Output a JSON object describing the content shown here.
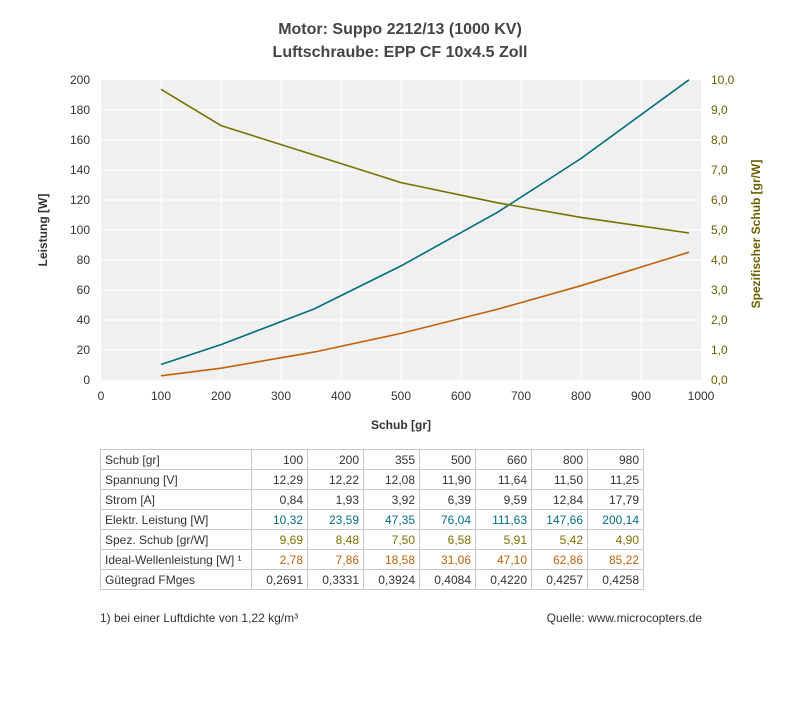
{
  "title": {
    "line1": "Motor: Suppo 2212/13 (1000 KV)",
    "line2": "Luftschraube: EPP CF 10x4.5 Zoll"
  },
  "chart_data": {
    "type": "line",
    "xlabel": "Schub [gr]",
    "ylabel": "Leistung [W]",
    "y2label": "Spezifischer Schub [gr/W]",
    "xlim": [
      0,
      1000
    ],
    "ylim": [
      0,
      200
    ],
    "y2lim": [
      0,
      10
    ],
    "grid": true,
    "x_ticks": [
      "0",
      "100",
      "200",
      "300",
      "400",
      "500",
      "600",
      "700",
      "800",
      "900",
      "1000"
    ],
    "y_ticks": [
      "0",
      "20",
      "40",
      "60",
      "80",
      "100",
      "120",
      "140",
      "160",
      "180",
      "200"
    ],
    "y2_ticks": [
      "0,0",
      "1,0",
      "2,0",
      "3,0",
      "4,0",
      "5,0",
      "6,0",
      "7,0",
      "8,0",
      "9,0",
      "10,0"
    ],
    "x": [
      100,
      200,
      355,
      500,
      660,
      800,
      980
    ],
    "series": [
      {
        "axis": "left",
        "color": "#006e7f",
        "values": [
          10.32,
          23.59,
          47.35,
          76.04,
          111.63,
          147.66,
          200.14
        ]
      },
      {
        "axis": "right",
        "color": "#7a7000",
        "values": [
          9.69,
          8.48,
          7.5,
          6.58,
          5.91,
          5.42,
          4.9
        ]
      },
      {
        "axis": "left",
        "color": "#c0620a",
        "values": [
          2.78,
          7.86,
          18.58,
          31.06,
          47.1,
          62.86,
          85.22
        ]
      }
    ],
    "colors": {
      "axis_right_label": "#6b6000",
      "plot_bg": "#f0f0f0",
      "grid": "#ffffff"
    }
  },
  "table": {
    "rows": [
      {
        "label": "Schub [gr]",
        "color": "#333333",
        "values": [
          "100",
          "200",
          "355",
          "500",
          "660",
          "800",
          "980"
        ]
      },
      {
        "label": "Spannung [V]",
        "color": "#333333",
        "values": [
          "12,29",
          "12,22",
          "12,08",
          "11,90",
          "11,64",
          "11,50",
          "11,25"
        ]
      },
      {
        "label": "Strom [A]",
        "color": "#333333",
        "values": [
          "0,84",
          "1,93",
          "3,92",
          "6,39",
          "9,59",
          "12,84",
          "17,79"
        ]
      },
      {
        "label": "Elektr. Leistung [W]",
        "color": "#006e7f",
        "values": [
          "10,32",
          "23,59",
          "47,35",
          "76,04",
          "111,63",
          "147,66",
          "200,14"
        ]
      },
      {
        "label": "Spez. Schub [gr/W]",
        "color": "#7a7000",
        "values": [
          "9,69",
          "8,48",
          "7,50",
          "6,58",
          "5,91",
          "5,42",
          "4,90"
        ]
      },
      {
        "label": "Ideal-Wellenleistung [W] ¹",
        "color": "#c0620a",
        "values": [
          "2,78",
          "7,86",
          "18,58",
          "31,06",
          "47,10",
          "62,86",
          "85,22"
        ]
      },
      {
        "label": "Gütegrad FMges",
        "color": "#333333",
        "values": [
          "0,2691",
          "0,3331",
          "0,3924",
          "0,4084",
          "0,4220",
          "0,4257",
          "0,4258"
        ]
      }
    ]
  },
  "footnote": "1) bei einer Luftdichte von 1,22 kg/m³",
  "source": "Quelle: www.microcopters.de"
}
